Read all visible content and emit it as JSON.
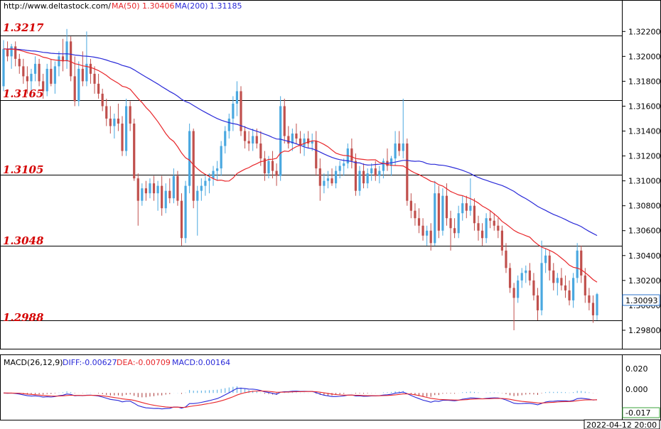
{
  "header": {
    "url": "http://www.deltastock.com/",
    "ma50_label": "MA(50)",
    "ma50_value": "1.30406",
    "ma200_label": "MA(200)",
    "ma200_value": "1.31185"
  },
  "price_panel": {
    "last_price": "1.30093",
    "tick_labels": [
      "1.32200",
      "1.32000",
      "1.31800",
      "1.31600",
      "1.31400",
      "1.31200",
      "1.31000",
      "1.30800",
      "1.30600",
      "1.30400",
      "1.30200",
      "1.30000",
      "1.29800"
    ]
  },
  "levels": [
    {
      "label": "1.3217",
      "value": 1.3217
    },
    {
      "label": "1.3165",
      "value": 1.3165
    },
    {
      "label": "1.3105",
      "value": 1.3105
    },
    {
      "label": "1.3048",
      "value": 1.3048
    },
    {
      "label": "1.2988",
      "value": 1.2988
    }
  ],
  "macd_panel": {
    "title": "MACD(26,12,9)",
    "diff_label": "DIFF:-0.00627",
    "dea_label": "DEA:-0.00709",
    "macd_label": "MACD:0.00164",
    "tick_labels": [
      "0.020",
      "0.000"
    ],
    "min_label": "-0.017"
  },
  "timestamp": "2022-04-12 20:00",
  "colors": {
    "bull": "#4aa8e0",
    "bear": "#c0504d",
    "ma50": "#e8262a",
    "ma200": "#2a2ad8",
    "level_text": "#d40000",
    "diff": "#2a2ad8",
    "dea": "#e8262a",
    "hist_pos": "#4aa8e0",
    "hist_neg": "#a83232"
  },
  "chart_data": {
    "type": "candlestick",
    "ylim": [
      1.2968,
      1.3235
    ],
    "macd_ylim": [
      -0.019,
      0.026
    ],
    "ohlc": [
      [
        1.3176,
        1.3213,
        1.3172,
        1.3206
      ],
      [
        1.3206,
        1.3212,
        1.3196,
        1.32
      ],
      [
        1.32,
        1.321,
        1.319,
        1.3208
      ],
      [
        1.3208,
        1.3212,
        1.3192,
        1.3198
      ],
      [
        1.3198,
        1.3202,
        1.3186,
        1.3192
      ],
      [
        1.3192,
        1.3198,
        1.3178,
        1.3184
      ],
      [
        1.3184,
        1.3192,
        1.317,
        1.318
      ],
      [
        1.318,
        1.319,
        1.3168,
        1.3186
      ],
      [
        1.3186,
        1.32,
        1.318,
        1.3194
      ],
      [
        1.3194,
        1.3198,
        1.3176,
        1.318
      ],
      [
        1.318,
        1.3186,
        1.3166,
        1.3172
      ],
      [
        1.3172,
        1.3194,
        1.3168,
        1.319
      ],
      [
        1.319,
        1.3198,
        1.3176,
        1.3178
      ],
      [
        1.3178,
        1.3196,
        1.317,
        1.3192
      ],
      [
        1.3192,
        1.3204,
        1.3184,
        1.32
      ],
      [
        1.32,
        1.3214,
        1.3188,
        1.3196
      ],
      [
        1.3196,
        1.3222,
        1.319,
        1.3212
      ],
      [
        1.3212,
        1.3216,
        1.318,
        1.3184
      ],
      [
        1.3184,
        1.32,
        1.316,
        1.3164
      ],
      [
        1.3164,
        1.3196,
        1.316,
        1.319
      ],
      [
        1.319,
        1.3204,
        1.3176,
        1.318
      ],
      [
        1.318,
        1.322,
        1.3176,
        1.3194
      ],
      [
        1.3194,
        1.3198,
        1.3178,
        1.3186
      ],
      [
        1.3186,
        1.3192,
        1.317,
        1.3178
      ],
      [
        1.3178,
        1.3186,
        1.3166,
        1.317
      ],
      [
        1.317,
        1.3174,
        1.3156,
        1.316
      ],
      [
        1.316,
        1.3166,
        1.3144,
        1.315
      ],
      [
        1.315,
        1.316,
        1.3138,
        1.3144
      ],
      [
        1.3144,
        1.3154,
        1.3134,
        1.315
      ],
      [
        1.315,
        1.3162,
        1.314,
        1.3146
      ],
      [
        1.3146,
        1.3152,
        1.312,
        1.3124
      ],
      [
        1.3124,
        1.3166,
        1.312,
        1.316
      ],
      [
        1.316,
        1.3164,
        1.314,
        1.3146
      ],
      [
        1.3146,
        1.315,
        1.31,
        1.3102
      ],
      [
        1.3102,
        1.3106,
        1.3064,
        1.3084
      ],
      [
        1.3084,
        1.3098,
        1.308,
        1.3094
      ],
      [
        1.3094,
        1.31,
        1.3084,
        1.309
      ],
      [
        1.309,
        1.3102,
        1.3086,
        1.3098
      ],
      [
        1.3098,
        1.3104,
        1.3084,
        1.309
      ],
      [
        1.309,
        1.31,
        1.3076,
        1.3096
      ],
      [
        1.3096,
        1.3104,
        1.3072,
        1.3078
      ],
      [
        1.3078,
        1.3098,
        1.3074,
        1.3092
      ],
      [
        1.3092,
        1.3102,
        1.3082,
        1.3086
      ],
      [
        1.3086,
        1.311,
        1.3082,
        1.3104
      ],
      [
        1.3104,
        1.3108,
        1.308,
        1.3084
      ],
      [
        1.3084,
        1.309,
        1.3048,
        1.3054
      ],
      [
        1.3054,
        1.31,
        1.305,
        1.3096
      ],
      [
        1.3096,
        1.3146,
        1.309,
        1.314
      ],
      [
        1.314,
        1.3142,
        1.3078,
        1.3084
      ],
      [
        1.3084,
        1.3096,
        1.3056,
        1.3092
      ],
      [
        1.3092,
        1.3102,
        1.3084,
        1.3096
      ],
      [
        1.3096,
        1.3104,
        1.3088,
        1.31
      ],
      [
        1.31,
        1.3106,
        1.309,
        1.3102
      ],
      [
        1.3102,
        1.3112,
        1.3096,
        1.3108
      ],
      [
        1.3108,
        1.3116,
        1.31,
        1.311
      ],
      [
        1.311,
        1.3132,
        1.3104,
        1.3128
      ],
      [
        1.3128,
        1.3144,
        1.3122,
        1.314
      ],
      [
        1.314,
        1.3154,
        1.3134,
        1.315
      ],
      [
        1.315,
        1.3168,
        1.314,
        1.3162
      ],
      [
        1.3162,
        1.318,
        1.3152,
        1.3172
      ],
      [
        1.3172,
        1.3176,
        1.3136,
        1.314
      ],
      [
        1.314,
        1.3144,
        1.3126,
        1.3132
      ],
      [
        1.3132,
        1.314,
        1.3124,
        1.313
      ],
      [
        1.313,
        1.3142,
        1.3124,
        1.3136
      ],
      [
        1.3136,
        1.3142,
        1.3126,
        1.313
      ],
      [
        1.313,
        1.314,
        1.3112,
        1.3118
      ],
      [
        1.3118,
        1.3124,
        1.31,
        1.3106
      ],
      [
        1.3106,
        1.312,
        1.3102,
        1.3116
      ],
      [
        1.3116,
        1.3124,
        1.3102,
        1.3108
      ],
      [
        1.3108,
        1.3114,
        1.3096,
        1.3104
      ],
      [
        1.3104,
        1.3168,
        1.31,
        1.316
      ],
      [
        1.316,
        1.3166,
        1.313,
        1.3136
      ],
      [
        1.3136,
        1.3144,
        1.3126,
        1.313
      ],
      [
        1.313,
        1.3142,
        1.3124,
        1.3138
      ],
      [
        1.3138,
        1.3146,
        1.313,
        1.3134
      ],
      [
        1.3134,
        1.314,
        1.3122,
        1.3128
      ],
      [
        1.3128,
        1.3138,
        1.312,
        1.3134
      ],
      [
        1.3134,
        1.314,
        1.3126,
        1.313
      ],
      [
        1.313,
        1.3138,
        1.3124,
        1.3132
      ],
      [
        1.3132,
        1.314,
        1.3104,
        1.311
      ],
      [
        1.311,
        1.3118,
        1.3084,
        1.3096
      ],
      [
        1.3096,
        1.3106,
        1.309,
        1.31
      ],
      [
        1.31,
        1.3108,
        1.3094,
        1.3102
      ],
      [
        1.3102,
        1.311,
        1.3096,
        1.3098
      ],
      [
        1.3098,
        1.3112,
        1.3094,
        1.3108
      ],
      [
        1.3108,
        1.3116,
        1.3102,
        1.3112
      ],
      [
        1.3112,
        1.3118,
        1.3104,
        1.3114
      ],
      [
        1.3114,
        1.313,
        1.311,
        1.3126
      ],
      [
        1.3126,
        1.3134,
        1.311,
        1.3116
      ],
      [
        1.3116,
        1.3122,
        1.3088,
        1.3092
      ],
      [
        1.3092,
        1.3112,
        1.3088,
        1.3108
      ],
      [
        1.3108,
        1.3114,
        1.3094,
        1.3098
      ],
      [
        1.3098,
        1.311,
        1.3094,
        1.3106
      ],
      [
        1.3106,
        1.3114,
        1.31,
        1.311
      ],
      [
        1.311,
        1.3116,
        1.31,
        1.3104
      ],
      [
        1.3104,
        1.3112,
        1.3098,
        1.3108
      ],
      [
        1.3108,
        1.3118,
        1.3102,
        1.3116
      ],
      [
        1.3116,
        1.3126,
        1.3108,
        1.3112
      ],
      [
        1.3112,
        1.312,
        1.3104,
        1.3118
      ],
      [
        1.3118,
        1.314,
        1.3112,
        1.313
      ],
      [
        1.313,
        1.314,
        1.312,
        1.3124
      ],
      [
        1.3124,
        1.3166,
        1.3118,
        1.313
      ],
      [
        1.313,
        1.3134,
        1.308,
        1.3084
      ],
      [
        1.3084,
        1.309,
        1.307,
        1.3076
      ],
      [
        1.3076,
        1.3082,
        1.3064,
        1.307
      ],
      [
        1.307,
        1.3078,
        1.3058,
        1.3064
      ],
      [
        1.3064,
        1.307,
        1.3052,
        1.3056
      ],
      [
        1.3056,
        1.3064,
        1.3048,
        1.306
      ],
      [
        1.306,
        1.3066,
        1.3044,
        1.305
      ],
      [
        1.305,
        1.31,
        1.3048,
        1.309
      ],
      [
        1.309,
        1.3096,
        1.3054,
        1.306
      ],
      [
        1.306,
        1.3094,
        1.3056,
        1.3088
      ],
      [
        1.3088,
        1.3098,
        1.3064,
        1.307
      ],
      [
        1.307,
        1.3076,
        1.3044,
        1.3062
      ],
      [
        1.3062,
        1.307,
        1.3054,
        1.3058
      ],
      [
        1.3058,
        1.308,
        1.3054,
        1.3074
      ],
      [
        1.3074,
        1.3088,
        1.3068,
        1.3082
      ],
      [
        1.3082,
        1.3088,
        1.307,
        1.3076
      ],
      [
        1.3076,
        1.3102,
        1.3072,
        1.308
      ],
      [
        1.308,
        1.3086,
        1.306,
        1.3066
      ],
      [
        1.3066,
        1.3072,
        1.3052,
        1.306
      ],
      [
        1.306,
        1.3066,
        1.3048,
        1.3054
      ],
      [
        1.3054,
        1.3074,
        1.305,
        1.307
      ],
      [
        1.307,
        1.3076,
        1.3062,
        1.3068
      ],
      [
        1.3068,
        1.3074,
        1.306,
        1.3064
      ],
      [
        1.3064,
        1.307,
        1.3054,
        1.306
      ],
      [
        1.306,
        1.3064,
        1.304,
        1.3044
      ],
      [
        1.3044,
        1.305,
        1.3026,
        1.303
      ],
      [
        1.303,
        1.3034,
        1.301,
        1.3014
      ],
      [
        1.3014,
        1.3018,
        1.298,
        1.3006
      ],
      [
        1.3006,
        1.3024,
        1.3002,
        1.302
      ],
      [
        1.302,
        1.303,
        1.3014,
        1.3026
      ],
      [
        1.3026,
        1.3032,
        1.3018,
        1.3028
      ],
      [
        1.3028,
        1.3034,
        1.3016,
        1.302
      ],
      [
        1.302,
        1.3026,
        1.3004,
        1.3008
      ],
      [
        1.3008,
        1.3014,
        1.2988,
        1.2996
      ],
      [
        1.2996,
        1.3052,
        1.2992,
        1.3034
      ],
      [
        1.3034,
        1.3046,
        1.3026,
        1.304
      ],
      [
        1.304,
        1.3044,
        1.302,
        1.3028
      ],
      [
        1.3028,
        1.3034,
        1.3012,
        1.3018
      ],
      [
        1.3018,
        1.3026,
        1.3008,
        1.3022
      ],
      [
        1.3022,
        1.303,
        1.3012,
        1.3016
      ],
      [
        1.3016,
        1.3024,
        1.3006,
        1.3012
      ],
      [
        1.3012,
        1.302,
        1.3,
        1.3004
      ],
      [
        1.3004,
        1.3026,
        1.2998,
        1.3022
      ],
      [
        1.3022,
        1.305,
        1.3018,
        1.3044
      ],
      [
        1.3044,
        1.3048,
        1.3018,
        1.3024
      ],
      [
        1.3024,
        1.303,
        1.3002,
        1.3008
      ],
      [
        1.3008,
        1.3014,
        1.2996,
        1.3002
      ],
      [
        1.3002,
        1.3008,
        1.2986,
        1.2992
      ],
      [
        1.2992,
        1.301,
        1.2988,
        1.3009
      ]
    ]
  }
}
